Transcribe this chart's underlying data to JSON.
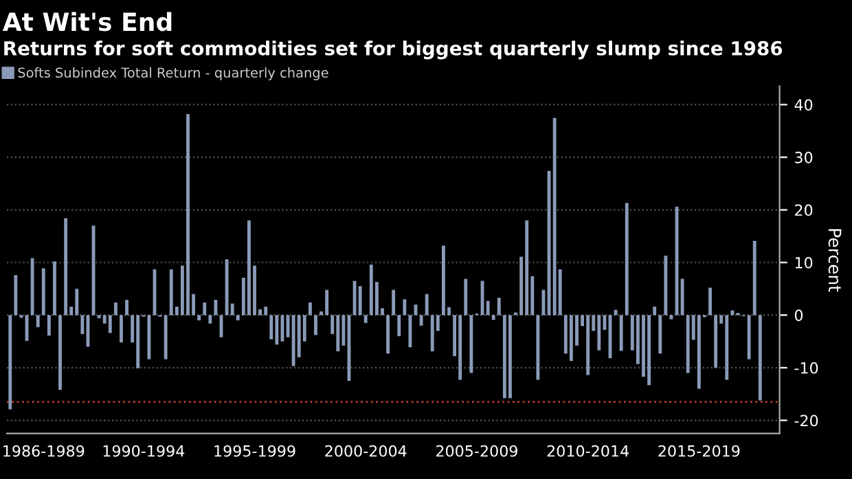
{
  "chart_data": {
    "type": "bar",
    "title": "At Wit's End",
    "subtitle": "Returns for soft commodities set for biggest quarterly slump since 1986",
    "ylabel": "Percent",
    "categories": [
      null,
      null,
      null,
      null,
      null,
      null,
      "1986-1989",
      null,
      null,
      null,
      null,
      null,
      null,
      null,
      null,
      null,
      null,
      null,
      null,
      null,
      null,
      null,
      null,
      null,
      "1990-1994",
      null,
      null,
      null,
      null,
      null,
      null,
      null,
      null,
      null,
      null,
      null,
      null,
      null,
      null,
      null,
      null,
      null,
      null,
      null,
      "1995-1999",
      null,
      null,
      null,
      null,
      null,
      null,
      null,
      null,
      null,
      null,
      null,
      null,
      null,
      null,
      null,
      null,
      null,
      null,
      null,
      "2000-2004",
      null,
      null,
      null,
      null,
      null,
      null,
      null,
      null,
      null,
      null,
      null,
      null,
      null,
      null,
      null,
      null,
      null,
      null,
      null,
      "2005-2009",
      null,
      null,
      null,
      null,
      null,
      null,
      null,
      null,
      null,
      null,
      null,
      null,
      null,
      null,
      null,
      null,
      null,
      null,
      null,
      "2010-2014",
      null,
      null,
      null,
      null,
      null,
      null,
      null,
      null,
      null,
      null,
      null,
      null,
      null,
      null,
      null,
      null,
      null,
      null,
      null,
      "2015-2019",
      null,
      null,
      null,
      null,
      null,
      null,
      null,
      null,
      null,
      null,
      null
    ],
    "series": [
      {
        "name": "Softs Subindex Total Return - quarterly change",
        "color": "#8a9bb8",
        "values": [
          -17.9,
          7.6,
          -0.5,
          -4.9,
          10.8,
          -2.3,
          8.9,
          -3.9,
          10.2,
          -14.2,
          18.4,
          1.6,
          5.0,
          -3.6,
          -6.0,
          17.0,
          -0.6,
          -1.6,
          -3.4,
          2.4,
          -5.2,
          2.9,
          -5.2,
          -10.1,
          -0.3,
          -8.4,
          8.7,
          -0.3,
          -8.4,
          8.7,
          1.6,
          9.4,
          38.2,
          4.0,
          -1.0,
          2.4,
          -1.6,
          2.9,
          -4.2,
          10.6,
          2.2,
          -1.0,
          7.1,
          18.0,
          9.4,
          1.1,
          1.6,
          -4.6,
          -5.6,
          -5.0,
          -4.2,
          -9.7,
          -8.0,
          -5.0,
          2.4,
          -3.8,
          0.7,
          4.8,
          -3.6,
          -6.9,
          -5.8,
          -12.5,
          6.5,
          5.5,
          -1.5,
          9.6,
          6.3,
          1.3,
          -7.3,
          4.8,
          -4.0,
          3.0,
          -6.1,
          2.0,
          -2.0,
          4.0,
          -6.9,
          -3.0,
          13.2,
          1.5,
          -7.8,
          -12.3,
          6.9,
          -11.0,
          0.3,
          6.5,
          2.7,
          -0.9,
          3.3,
          -15.8,
          -15.8,
          0.5,
          11.1,
          18.0,
          7.4,
          -12.3,
          4.8,
          27.4,
          37.5,
          8.7,
          -7.3,
          -8.7,
          -5.8,
          -2.1,
          -11.4,
          -3.0,
          -6.7,
          -2.8,
          -8.2,
          1.0,
          -6.8,
          21.3,
          -6.7,
          -9.3,
          -11.7,
          -13.3,
          1.6,
          -7.3,
          11.3,
          -0.8,
          20.6,
          6.9,
          -11.0,
          -4.7,
          -14.0,
          -0.4,
          5.2,
          -10.0,
          -1.6,
          -12.3,
          0.9,
          0.4,
          -0.2,
          -8.4,
          14.1,
          -16.2
        ]
      }
    ],
    "ylim": [
      -22.5,
      43.5
    ],
    "yticks": [
      -20,
      -10,
      0,
      10,
      20,
      30,
      40
    ],
    "ref_lines": [
      {
        "axis": "y",
        "value": -16.5,
        "color": "#c0392b",
        "line_style": "dotted"
      }
    ],
    "grid": "y",
    "legend": "top left"
  }
}
